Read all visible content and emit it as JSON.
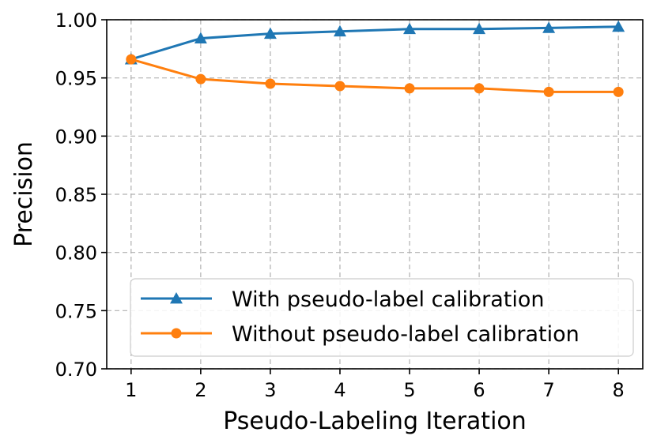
{
  "chart_data": {
    "type": "line",
    "title": "",
    "xlabel": "Pseudo-Labeling Iteration",
    "ylabel": "Precision",
    "x": [
      1,
      2,
      3,
      4,
      5,
      6,
      7,
      8
    ],
    "xlim": [
      0.65,
      8.35
    ],
    "ylim": [
      0.7,
      1.0
    ],
    "x_ticks": [
      "1",
      "2",
      "3",
      "4",
      "5",
      "6",
      "7",
      "8"
    ],
    "y_ticks": [
      "0.70",
      "0.75",
      "0.80",
      "0.85",
      "0.90",
      "0.95",
      "1.00"
    ],
    "grid": true,
    "legend_position": "lower-right",
    "series": [
      {
        "name": "With pseudo-label calibration",
        "color": "#1f77b4",
        "marker": "triangle",
        "values": [
          0.966,
          0.984,
          0.988,
          0.99,
          0.992,
          0.992,
          0.993,
          0.994
        ]
      },
      {
        "name": "Without pseudo-label calibration",
        "color": "#ff7f0e",
        "marker": "circle",
        "values": [
          0.966,
          0.949,
          0.945,
          0.943,
          0.941,
          0.941,
          0.938,
          0.938
        ]
      }
    ]
  }
}
